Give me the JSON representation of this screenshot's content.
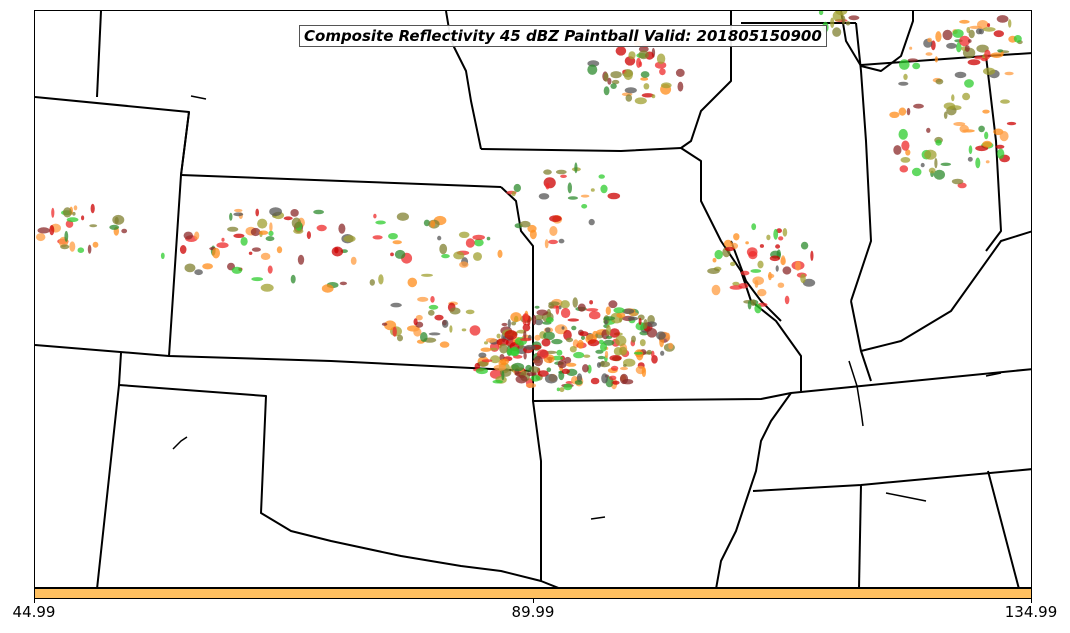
{
  "title": "Composite Reflectivity 45 dBZ Paintball Valid: 201805150900",
  "colorbar": {
    "color": "#ffc060",
    "ticks": [
      "44.99",
      "89.99",
      "134.99"
    ]
  },
  "member_colors": [
    "#cc0000",
    "#ee2a2a",
    "#2e8b2e",
    "#2ecc2e",
    "#ff8c1a",
    "#ff9c40",
    "#555555",
    "#8b2a2a",
    "#a0a030",
    "#808030"
  ],
  "chart_data": {
    "type": "map",
    "title": "Composite Reflectivity 45 dBZ Paintball Valid: 201805150900",
    "colorbar_ticks": [
      44.99,
      89.99,
      134.99
    ]
  }
}
